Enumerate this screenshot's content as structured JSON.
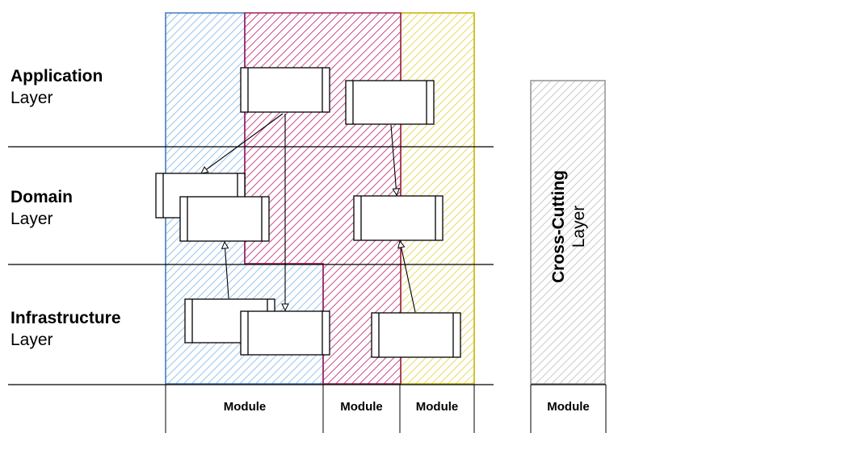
{
  "layers": [
    {
      "name": "Application",
      "sub": "Layer"
    },
    {
      "name": "Domain",
      "sub": "Layer"
    },
    {
      "name": "Infrastructure",
      "sub": "Layer"
    }
  ],
  "modules": [
    {
      "label": "Module",
      "color": "#7eb4e6"
    },
    {
      "label": "Module",
      "color": "#c2357a"
    },
    {
      "label": "Module",
      "color": "#e0d23a"
    }
  ],
  "cross_cutting": {
    "name": "Cross-Cutting",
    "sub": "Layer",
    "module_label": "Module",
    "color": "#b8b8b8"
  }
}
